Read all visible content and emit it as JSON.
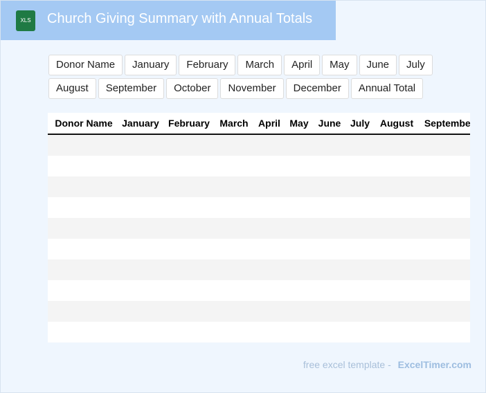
{
  "header": {
    "icon": "XLS",
    "title": "Church Giving Summary with Annual Totals"
  },
  "chips": [
    "Donor Name",
    "January",
    "February",
    "March",
    "April",
    "May",
    "June",
    "July",
    "August",
    "September",
    "October",
    "November",
    "December",
    "Annual Total"
  ],
  "table": {
    "headers": [
      "Donor Name",
      "January",
      "February",
      "March",
      "April",
      "May",
      "June",
      "July",
      "August",
      "September"
    ]
  },
  "footer": {
    "text": "free excel template - ",
    "brand": "ExcelTimer.com"
  }
}
